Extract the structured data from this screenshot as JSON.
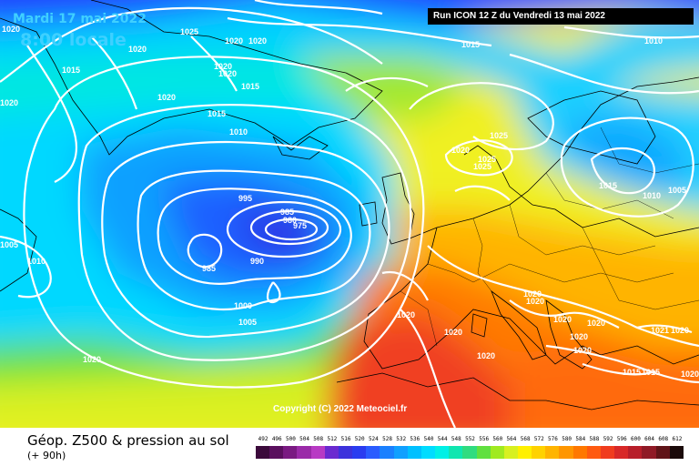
{
  "header": {
    "date": "Mardi 17 mai 2022",
    "time": "8:00 locale",
    "run": "Run ICON 12 Z du Vendredi 13 mai 2022"
  },
  "footer": {
    "title": "Géop. Z500 & pression au sol",
    "forecast_hour": "(+ 90h)"
  },
  "copyright": "Copyright (C) 2022 Meteociel.fr",
  "isobar_labels": [
    "1020",
    "1025",
    "1015",
    "1010",
    "1020",
    "1020",
    "1020",
    "1020",
    "1015",
    "1020",
    "1020",
    "1015",
    "1020",
    "1015",
    "1010",
    "995",
    "985",
    "980",
    "975",
    "985",
    "990",
    "1000",
    "1005",
    "1020",
    "1020",
    "1020",
    "1025",
    "1025",
    "1025",
    "1015",
    "1010",
    "1005",
    "1005",
    "1010",
    "1020",
    "1020",
    "1020",
    "1020",
    "1020",
    "1020",
    "1021",
    "1020",
    "1020",
    "1020",
    "1015",
    "1015",
    "1020"
  ],
  "scale": {
    "ticks": [
      "492",
      "496",
      "500",
      "504",
      "508",
      "512",
      "516",
      "520",
      "524",
      "528",
      "532",
      "536",
      "540",
      "544",
      "548",
      "552",
      "556",
      "560",
      "564",
      "568",
      "572",
      "576",
      "580",
      "584",
      "588",
      "592",
      "596",
      "600",
      "604",
      "608",
      "612"
    ],
    "colors": [
      "#3b0a3b",
      "#5a0f5e",
      "#7a1a82",
      "#9a2aa8",
      "#b83ac4",
      "#6a2ad0",
      "#3c32dc",
      "#2a3cf0",
      "#2a5cff",
      "#1a80ff",
      "#10a0ff",
      "#00c0ff",
      "#00dcff",
      "#00f0e6",
      "#10e6b0",
      "#30dc80",
      "#60e040",
      "#a0ea20",
      "#d8f020",
      "#fff000",
      "#ffd200",
      "#ffb400",
      "#ff9600",
      "#ff7800",
      "#ff5a10",
      "#f03c1e",
      "#d82828",
      "#b81e2a",
      "#901a26",
      "#601418",
      "#1a0a0a"
    ]
  }
}
